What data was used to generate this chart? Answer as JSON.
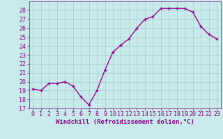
{
  "x": [
    0,
    1,
    2,
    3,
    4,
    5,
    6,
    7,
    8,
    9,
    10,
    11,
    12,
    13,
    14,
    15,
    16,
    17,
    18,
    19,
    20,
    21,
    22,
    23
  ],
  "y": [
    19.2,
    19.0,
    19.8,
    19.8,
    20.0,
    19.5,
    18.3,
    17.4,
    19.0,
    21.3,
    23.3,
    24.1,
    24.8,
    26.0,
    27.0,
    27.3,
    28.2,
    28.2,
    28.2,
    28.2,
    27.8,
    26.2,
    25.3,
    24.8
  ],
  "line_color": "#990099",
  "marker": "+",
  "marker_size": 3,
  "marker_lw": 1.0,
  "line_width": 1.0,
  "bg_color": "#c8eaea",
  "grid_color": "#a0cccc",
  "xlabel": "Windchill (Refroidissement éolien,°C)",
  "xlabel_color": "#880088",
  "tick_color": "#880088",
  "ylim": [
    17,
    29
  ],
  "xlim": [
    -0.5,
    23.5
  ],
  "yticks": [
    17,
    18,
    19,
    20,
    21,
    22,
    23,
    24,
    25,
    26,
    27,
    28
  ],
  "xticks": [
    0,
    1,
    2,
    3,
    4,
    5,
    6,
    7,
    8,
    9,
    10,
    11,
    12,
    13,
    14,
    15,
    16,
    17,
    18,
    19,
    20,
    21,
    22,
    23
  ],
  "tick_fontsize": 6,
  "xlabel_fontsize": 6.5
}
